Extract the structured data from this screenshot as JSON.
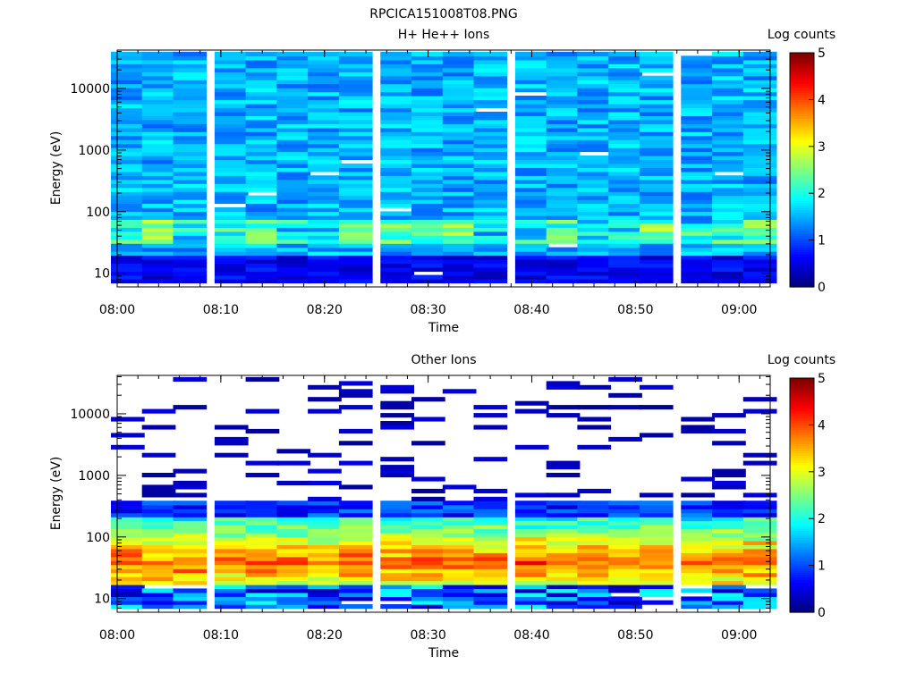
{
  "figure_title": "RPCICA151008T08.PNG",
  "colors": {
    "missing": "#ffffff",
    "axis": "#000000"
  },
  "colormap": [
    "#00007f",
    "#0000ff",
    "#007fff",
    "#00ffff",
    "#7fff7f",
    "#ffff00",
    "#ff7f00",
    "#ff0000",
    "#7f0000"
  ],
  "chart_data": [
    {
      "type": "heatmap",
      "title": "H+ He++ Ions",
      "xlabel": "Time",
      "ylabel": "Energy (eV)",
      "y_scale": "log",
      "xlim": [
        "08:00",
        "09:03"
      ],
      "ylim": [
        6,
        42000
      ],
      "x_ticks": [
        "08:00",
        "08:10",
        "08:20",
        "08:30",
        "08:40",
        "08:50",
        "09:00"
      ],
      "y_ticks": [
        "10",
        "100",
        "1000",
        "10000"
      ],
      "time_bins": [
        "08:01",
        "08:04",
        "08:07",
        "08:11",
        "08:14",
        "08:17",
        "08:20",
        "08:23",
        "08:27",
        "08:30",
        "08:33",
        "08:36",
        "08:40",
        "08:43",
        "08:46",
        "08:49",
        "08:52",
        "08:56",
        "08:59",
        "09:02"
      ],
      "energy_bins": [
        7.5,
        8.7,
        10,
        11.6,
        13.5,
        15.7,
        18.2,
        21.1,
        24.5,
        28.5,
        33,
        38.3,
        44.5,
        51.6,
        60,
        69.6,
        80.8,
        93.8,
        109,
        126,
        147,
        170,
        198,
        229,
        266,
        309,
        359,
        416,
        483,
        561,
        651,
        756,
        877,
        1018,
        1182,
        1372,
        1593,
        1849,
        2146,
        2491,
        2892,
        3357,
        3897,
        4524,
        5251,
        6096,
        7076,
        8215,
        9536,
        11070,
        12850,
        14920,
        17320,
        20100,
        23330,
        27090,
        31440,
        36500
      ],
      "missing_cells": [
        [
          3,
          19
        ],
        [
          6,
          27
        ],
        [
          4,
          22
        ],
        [
          14,
          32
        ],
        [
          11,
          43
        ],
        [
          12,
          47
        ],
        [
          13,
          9
        ],
        [
          9,
          2
        ],
        [
          16,
          52
        ],
        [
          18,
          27
        ],
        [
          8,
          18
        ],
        [
          7,
          30
        ],
        [
          17,
          57
        ]
      ],
      "colorbar": {
        "label": "Log counts",
        "ticks": [
          "0",
          "1",
          "2",
          "3",
          "4",
          "5"
        ],
        "range": [
          0,
          5
        ]
      }
    },
    {
      "type": "heatmap",
      "title": "Other Ions",
      "xlabel": "Time",
      "ylabel": "Energy (eV)",
      "y_scale": "log",
      "xlim": [
        "08:00",
        "09:03"
      ],
      "ylim": [
        6,
        42000
      ],
      "x_ticks": [
        "08:00",
        "08:10",
        "08:20",
        "08:30",
        "08:40",
        "08:50",
        "09:00"
      ],
      "y_ticks": [
        "10",
        "100",
        "1000",
        "10000"
      ],
      "time_bins": [
        "08:01",
        "08:04",
        "08:07",
        "08:11",
        "08:14",
        "08:17",
        "08:20",
        "08:23",
        "08:27",
        "08:30",
        "08:33",
        "08:36",
        "08:40",
        "08:43",
        "08:46",
        "08:49",
        "08:52",
        "08:56",
        "08:59",
        "09:02"
      ],
      "energy_bins": [
        7.5,
        8.7,
        10,
        11.6,
        13.5,
        15.7,
        18.2,
        21.1,
        24.5,
        28.5,
        33,
        38.3,
        44.5,
        51.6,
        60,
        69.6,
        80.8,
        93.8,
        109,
        126,
        147,
        170,
        198,
        229,
        266,
        309,
        359,
        416,
        483,
        561,
        651,
        756,
        877,
        1018,
        1182,
        1372,
        1593,
        1849,
        2146,
        2491,
        2892,
        3357,
        3897,
        4524,
        5251,
        6096,
        7076,
        8215,
        9536,
        11070,
        12850,
        14920,
        17320,
        20100,
        23330,
        27090,
        31440,
        36500
      ],
      "colorbar": {
        "label": "Log counts",
        "ticks": [
          "0",
          "1",
          "2",
          "3",
          "4",
          "5"
        ],
        "range": [
          0,
          5
        ]
      }
    }
  ]
}
